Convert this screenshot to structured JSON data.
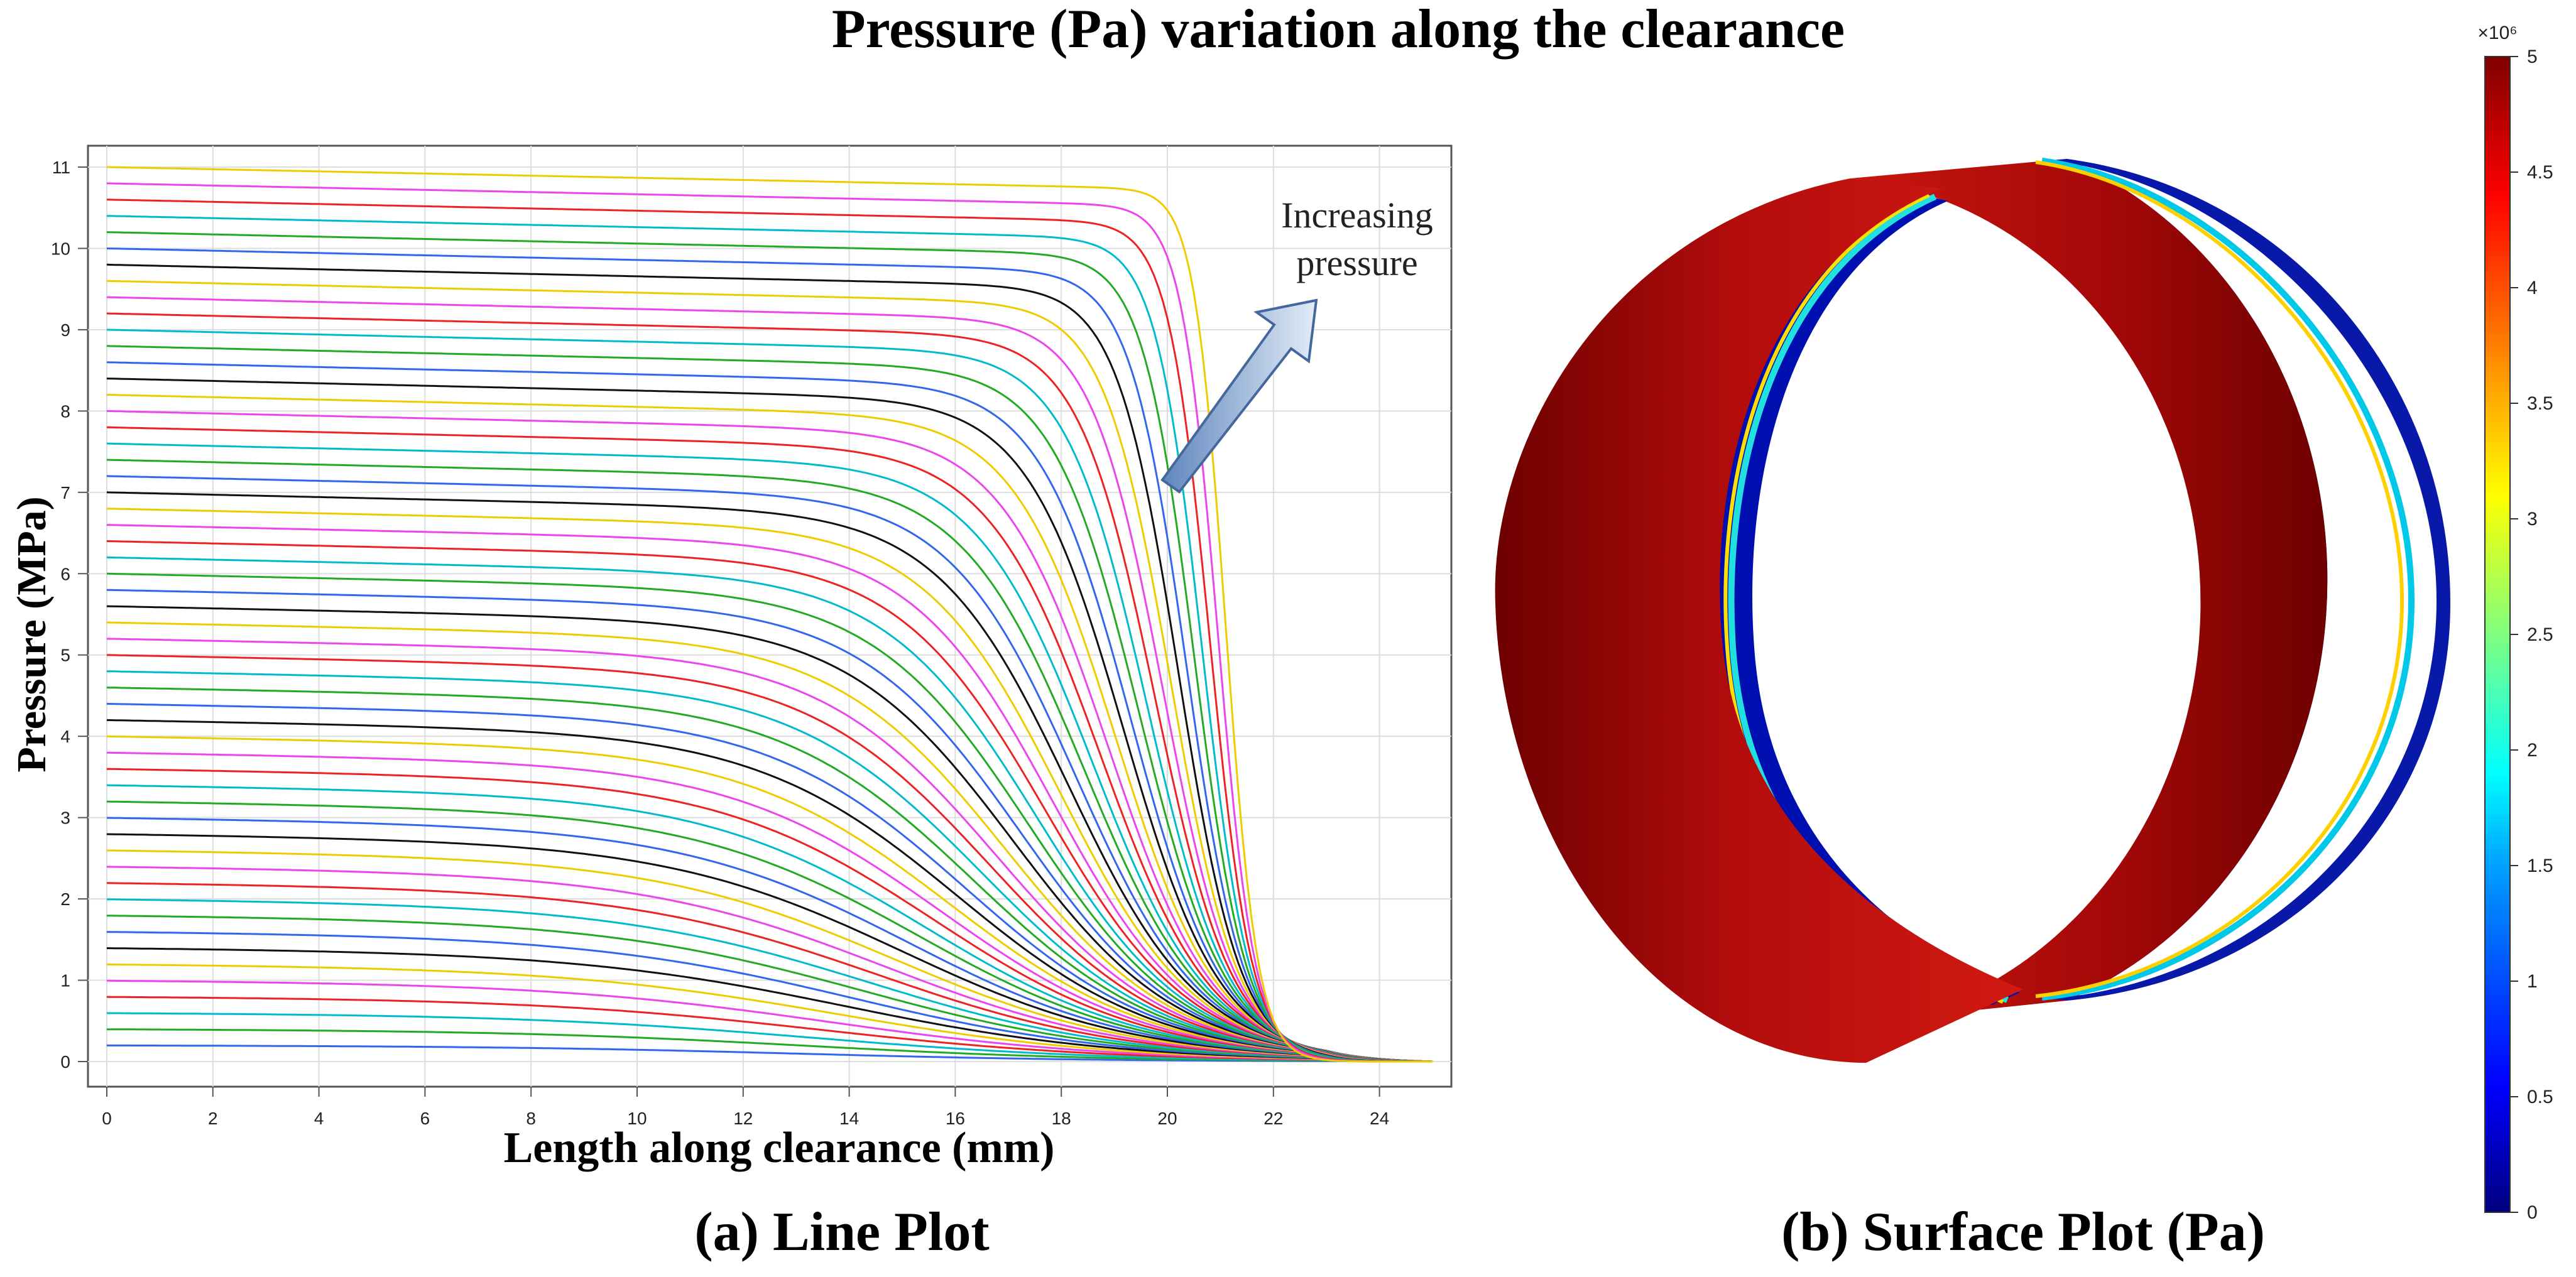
{
  "figure_title": "Pressure (Pa) variation along the clearance",
  "chart_data": [
    {
      "type": "line",
      "caption": "(a) Line Plot",
      "xlabel": "Length along clearance (mm)",
      "ylabel": "Pressure (MPa)",
      "xlim": [
        0,
        25
      ],
      "ylim": [
        0,
        11
      ],
      "xticks": [
        0,
        2,
        4,
        6,
        8,
        10,
        12,
        14,
        16,
        18,
        20,
        22,
        24
      ],
      "yticks": [
        0,
        1,
        2,
        3,
        4,
        5,
        6,
        7,
        8,
        9,
        10,
        11
      ],
      "grid": true,
      "annotation": [
        "Increasing",
        "pressure"
      ],
      "color_cycle": [
        "#3366ee",
        "#22aa22",
        "#00bbcc",
        "#ee2222",
        "#ee44ee",
        "#eecc00",
        "#111111"
      ],
      "series_inlet_pressures_MPa": [
        0.2,
        0.4,
        0.6,
        0.8,
        1.0,
        1.2,
        1.4,
        1.6,
        1.8,
        2.0,
        2.2,
        2.4,
        2.6,
        2.8,
        3.0,
        3.2,
        3.4,
        3.6,
        3.8,
        4.0,
        4.2,
        4.4,
        4.6,
        4.8,
        5.0,
        5.2,
        5.4,
        5.6,
        5.8,
        6.0,
        6.2,
        6.4,
        6.6,
        6.8,
        7.0,
        7.2,
        7.4,
        7.6,
        7.8,
        8.0,
        8.2,
        8.4,
        8.6,
        8.8,
        9.0,
        9.2,
        9.4,
        9.6,
        9.8,
        10.0,
        10.2,
        10.4,
        10.6,
        10.8,
        11.0
      ],
      "profile_note": "Each curve starts at its inlet pressure at 0 mm, stays nearly flat, drops steeply between ~18 and ~22 mm, and reaches 0 at 25 mm; higher-pressure curves drop later and more sharply."
    },
    {
      "type": "heatmap",
      "caption": "(b) Surface Plot (Pa)",
      "colorbar": {
        "min": 0,
        "max": 5,
        "multiplier": "×10⁶",
        "ticks": [
          "0",
          "0.5",
          "1",
          "1.5",
          "2",
          "2.5",
          "3",
          "3.5",
          "4",
          "4.5",
          "5"
        ],
        "colormap": [
          "#00007f",
          "#0000ff",
          "#00a0ff",
          "#00ffff",
          "#7fff7f",
          "#ffff00",
          "#ff7f00",
          "#ff0000",
          "#7f0000"
        ]
      }
    }
  ]
}
